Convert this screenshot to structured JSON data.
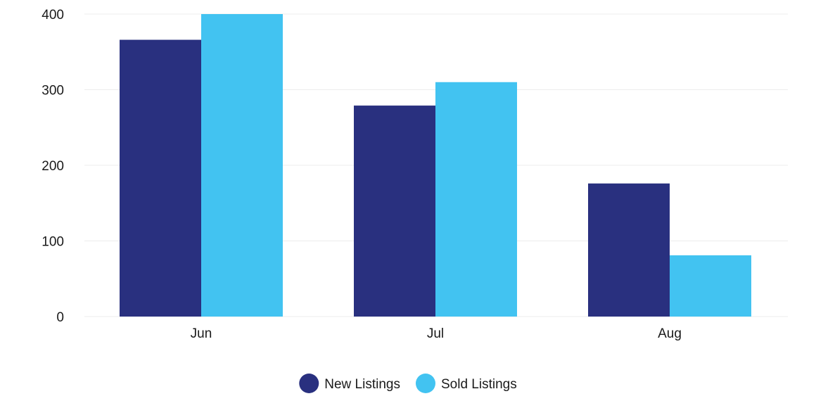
{
  "chart_data": {
    "type": "bar",
    "categories": [
      "Jun",
      "Jul",
      "Aug"
    ],
    "series": [
      {
        "name": "New Listings",
        "color": "#29307f",
        "values": [
          366,
          279,
          176
        ]
      },
      {
        "name": "Sold Listings",
        "color": "#42c3f1",
        "values": [
          400,
          310,
          81
        ]
      }
    ],
    "ylim": [
      0,
      400
    ],
    "yticks": [
      0,
      100,
      200,
      300,
      400
    ],
    "grid": true,
    "legend_position": "bottom-center"
  }
}
